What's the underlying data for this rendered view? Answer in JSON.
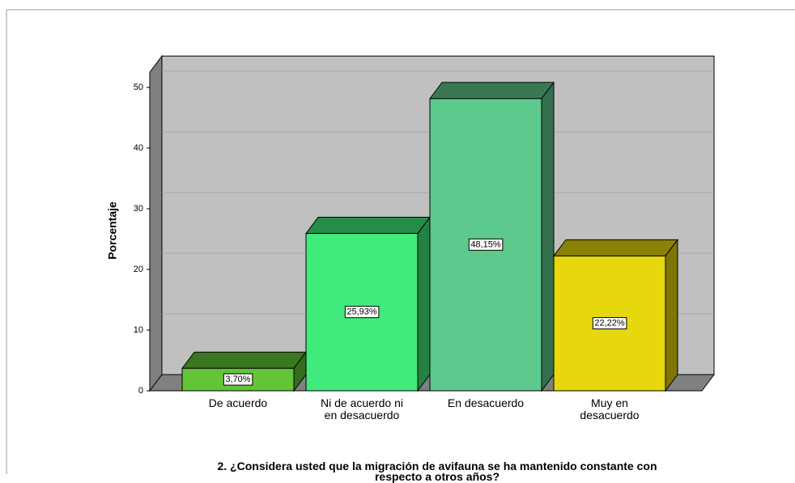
{
  "chart_data": {
    "type": "bar3d",
    "title": "2. ¿Considera usted que la migración de avifauna se ha mantenido constante con respecto a otros años?",
    "y_label": "Porcentaje",
    "categories": [
      "De acuerdo",
      "Ni de acuerdo ni en desacuerdo",
      "En desacuerdo",
      "Muy en desacuerdo"
    ],
    "values": [
      3.7,
      25.93,
      48.15,
      22.22
    ],
    "value_labels": [
      "3,70%",
      "25,93%",
      "48,15%",
      "22,22%"
    ],
    "colors": [
      "#62c436",
      "#40ea7c",
      "#5ec98c",
      "#e6d70e"
    ],
    "ylim": [
      0,
      52.5
    ],
    "yticks": [
      0,
      10,
      20,
      30,
      40,
      50
    ],
    "grid": true
  }
}
